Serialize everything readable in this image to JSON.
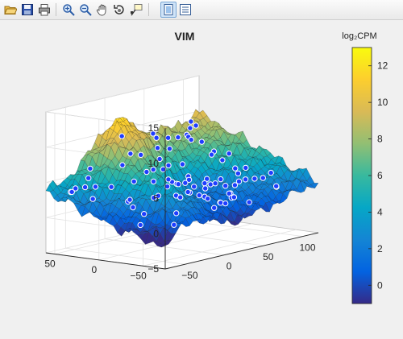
{
  "toolbar": {
    "buttons": [
      {
        "name": "open-file-button",
        "icon": "folder-open-icon"
      },
      {
        "name": "save-figure-button",
        "icon": "save-icon"
      },
      {
        "name": "print-figure-button",
        "icon": "print-icon"
      },
      {
        "name": "zoom-in-button",
        "icon": "zoom-in-icon"
      },
      {
        "name": "zoom-out-button",
        "icon": "zoom-out-icon"
      },
      {
        "name": "pan-button",
        "icon": "hand-icon"
      },
      {
        "name": "rotate-3d-button",
        "icon": "rotate-3d-icon"
      },
      {
        "name": "data-cursor-button",
        "icon": "data-cursor-icon"
      },
      {
        "name": "hide-plot-tools-button",
        "icon": "plot-tools-icon",
        "active": true
      },
      {
        "name": "show-plot-tools-button",
        "icon": "property-editor-icon"
      }
    ]
  },
  "chart_data": {
    "type": "surface",
    "title": "VIM",
    "colorbar_label": "log₂CPM",
    "colormap": "parula",
    "colormap_colors": [
      "#352a87",
      "#0363e1",
      "#1485d4",
      "#06a7c6",
      "#38b99e",
      "#92bf73",
      "#d9ba56",
      "#fcce2e",
      "#f9fb0e"
    ],
    "x_ticks": [
      -50,
      0,
      50,
      100
    ],
    "y_ticks": [
      -50,
      0,
      50
    ],
    "z_ticks": [
      -5,
      0,
      5,
      10,
      15
    ],
    "colorbar_ticks": [
      0,
      2,
      4,
      6,
      8,
      10,
      12
    ],
    "xlim": [
      -75,
      120
    ],
    "ylim": [
      -75,
      60
    ],
    "zlim": [
      -5,
      15
    ],
    "clim": [
      -1,
      13
    ],
    "marker_color": "#1f3dff",
    "grid": true
  }
}
